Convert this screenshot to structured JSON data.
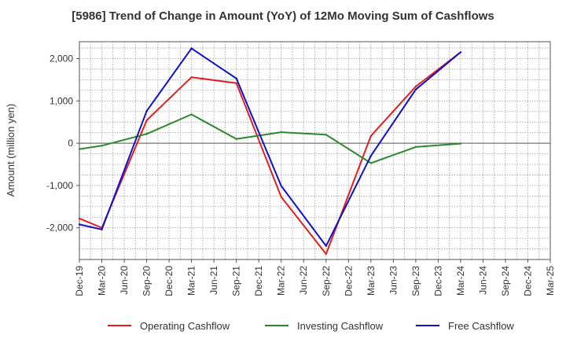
{
  "chart_data": {
    "type": "line",
    "title": "[5986]  Trend of Change in Amount (YoY) of 12Mo Moving Sum of Cashflows",
    "ylabel": "Amount (million yen)",
    "xlabel": "",
    "categories": [
      "Dec-19",
      "Mar-20",
      "Jun-20",
      "Sep-20",
      "Dec-20",
      "Mar-21",
      "Jun-21",
      "Sep-21",
      "Dec-21",
      "Mar-22",
      "Jun-22",
      "Sep-22",
      "Dec-22",
      "Mar-23",
      "Jun-23",
      "Sep-23",
      "Dec-23",
      "Mar-24",
      "Jun-24",
      "Sep-24",
      "Dec-24",
      "Mar-25"
    ],
    "ylim": [
      -2750,
      2400
    ],
    "yticks": [
      -2000,
      -1000,
      0,
      1000,
      2000
    ],
    "ytick_labels": [
      "-2,000",
      "-1,000",
      "0",
      "1,000",
      "2,000"
    ],
    "grid": true,
    "legend_position": "bottom",
    "series": [
      {
        "name": "Operating Cashflow",
        "color": "#e02020",
        "values": [
          -1780,
          -2000,
          null,
          540,
          null,
          1560,
          null,
          1420,
          null,
          -1270,
          null,
          -2620,
          null,
          170,
          null,
          1340,
          null,
          2150,
          null,
          null,
          null,
          null
        ]
      },
      {
        "name": "Investing Cashflow",
        "color": "#2a8a2a",
        "values": [
          -140,
          -60,
          null,
          220,
          null,
          680,
          null,
          100,
          null,
          260,
          null,
          200,
          null,
          -470,
          null,
          -90,
          null,
          -10,
          null,
          null,
          null,
          null
        ]
      },
      {
        "name": "Free Cashflow",
        "color": "#1010cc",
        "values": [
          -1920,
          -2040,
          null,
          760,
          null,
          2240,
          null,
          1530,
          null,
          -1010,
          null,
          -2430,
          null,
          -300,
          null,
          1270,
          null,
          2150,
          null,
          null,
          null,
          null
        ]
      }
    ]
  }
}
